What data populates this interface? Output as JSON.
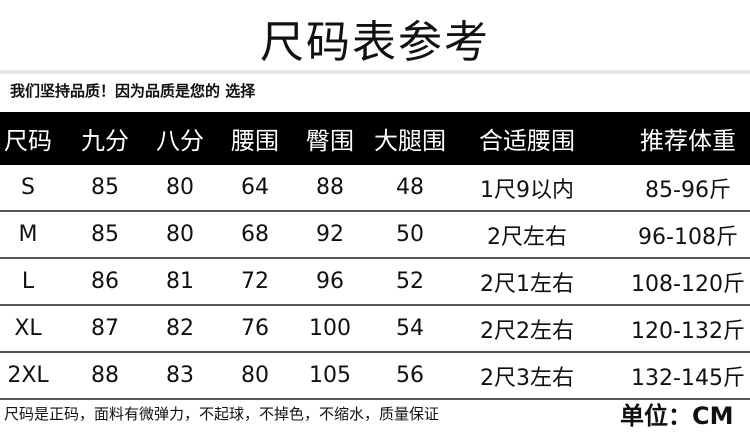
{
  "title": "尺码表参考",
  "slogan": "我们坚持品质！因为品质是您的 选择",
  "columns": [
    "尺码",
    "九分",
    "八分",
    "腰围",
    "臀围",
    "大腿围",
    "合适腰围",
    "推荐体重"
  ],
  "rows": [
    [
      "S",
      "85",
      "80",
      "64",
      "88",
      "48",
      "1尺9以内",
      "85-96斤"
    ],
    [
      "M",
      "85",
      "80",
      "68",
      "92",
      "50",
      "2尺左右",
      "96-108斤"
    ],
    [
      "L",
      "86",
      "81",
      "72",
      "96",
      "52",
      "2尺1左右",
      "108-120斤"
    ],
    [
      "XL",
      "87",
      "82",
      "76",
      "100",
      "54",
      "2尺2左右",
      "120-132斤"
    ],
    [
      "2XL",
      "88",
      "83",
      "80",
      "105",
      "56",
      "2尺3左右",
      "132-145斤"
    ]
  ],
  "footer_note": "尺码是正码，面料有微弹力，不起球，不掉色，不缩水，质量保证",
  "unit": "单位：CM"
}
